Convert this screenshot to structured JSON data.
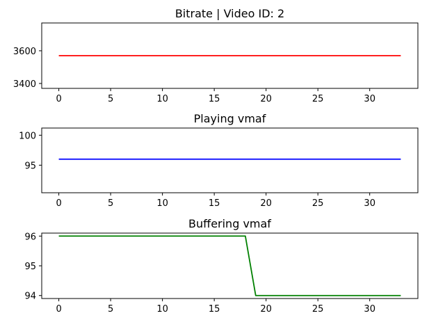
{
  "chart_data": [
    {
      "type": "line",
      "title": "Bitrate | Video ID: 2",
      "xlabel": "",
      "ylabel": "",
      "xlim": [
        -1.65,
        34.65
      ],
      "ylim": [
        3370,
        3770
      ],
      "xticks": [
        0,
        5,
        10,
        15,
        20,
        25,
        30
      ],
      "yticks": [
        3400,
        3600
      ],
      "grid": false,
      "series": [
        {
          "color": "#ff0000",
          "x": [
            0,
            33
          ],
          "y": [
            3570,
            3570
          ]
        }
      ]
    },
    {
      "type": "line",
      "title": "Playing vmaf",
      "xlabel": "",
      "ylabel": "",
      "xlim": [
        -1.65,
        34.65
      ],
      "ylim": [
        90.4,
        101.2
      ],
      "xticks": [
        0,
        5,
        10,
        15,
        20,
        25,
        30
      ],
      "yticks": [
        95,
        100
      ],
      "grid": false,
      "series": [
        {
          "color": "#0000ff",
          "x": [
            0,
            33
          ],
          "y": [
            96,
            96
          ]
        }
      ]
    },
    {
      "type": "line",
      "title": "Buffering vmaf",
      "xlabel": "",
      "ylabel": "",
      "xlim": [
        -1.65,
        34.65
      ],
      "ylim": [
        93.9,
        96.1
      ],
      "xticks": [
        0,
        5,
        10,
        15,
        20,
        25,
        30
      ],
      "yticks": [
        94,
        95,
        96
      ],
      "grid": false,
      "series": [
        {
          "color": "#008000",
          "x": [
            0,
            18,
            19,
            33
          ],
          "y": [
            96,
            96,
            94,
            94
          ]
        }
      ]
    }
  ]
}
